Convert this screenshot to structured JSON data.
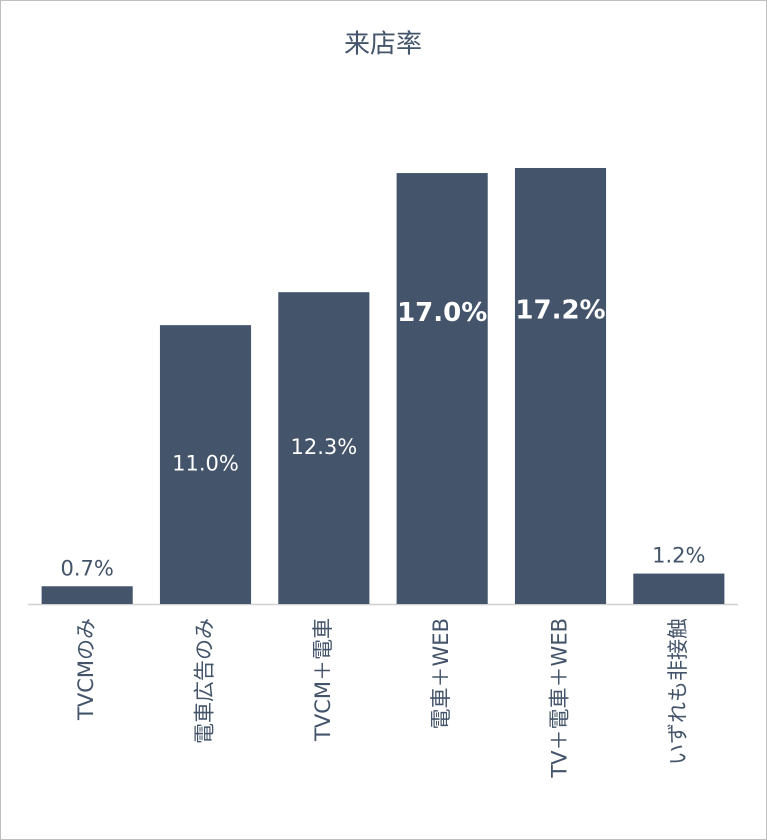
{
  "chart_data": {
    "type": "bar",
    "title": "来店率",
    "categories": [
      "TVCMのみ",
      "電車広告のみ",
      "TVCM＋電車",
      "電車＋WEB",
      "TV＋電車＋WEB",
      "いずれも非接触"
    ],
    "values": [
      0.7,
      11.0,
      12.3,
      17.0,
      17.2,
      1.2
    ],
    "value_labels": [
      "0.7%",
      "11.0%",
      "12.3%",
      "17.0%",
      "17.2%",
      "1.2%"
    ],
    "color": "#44546a"
  }
}
